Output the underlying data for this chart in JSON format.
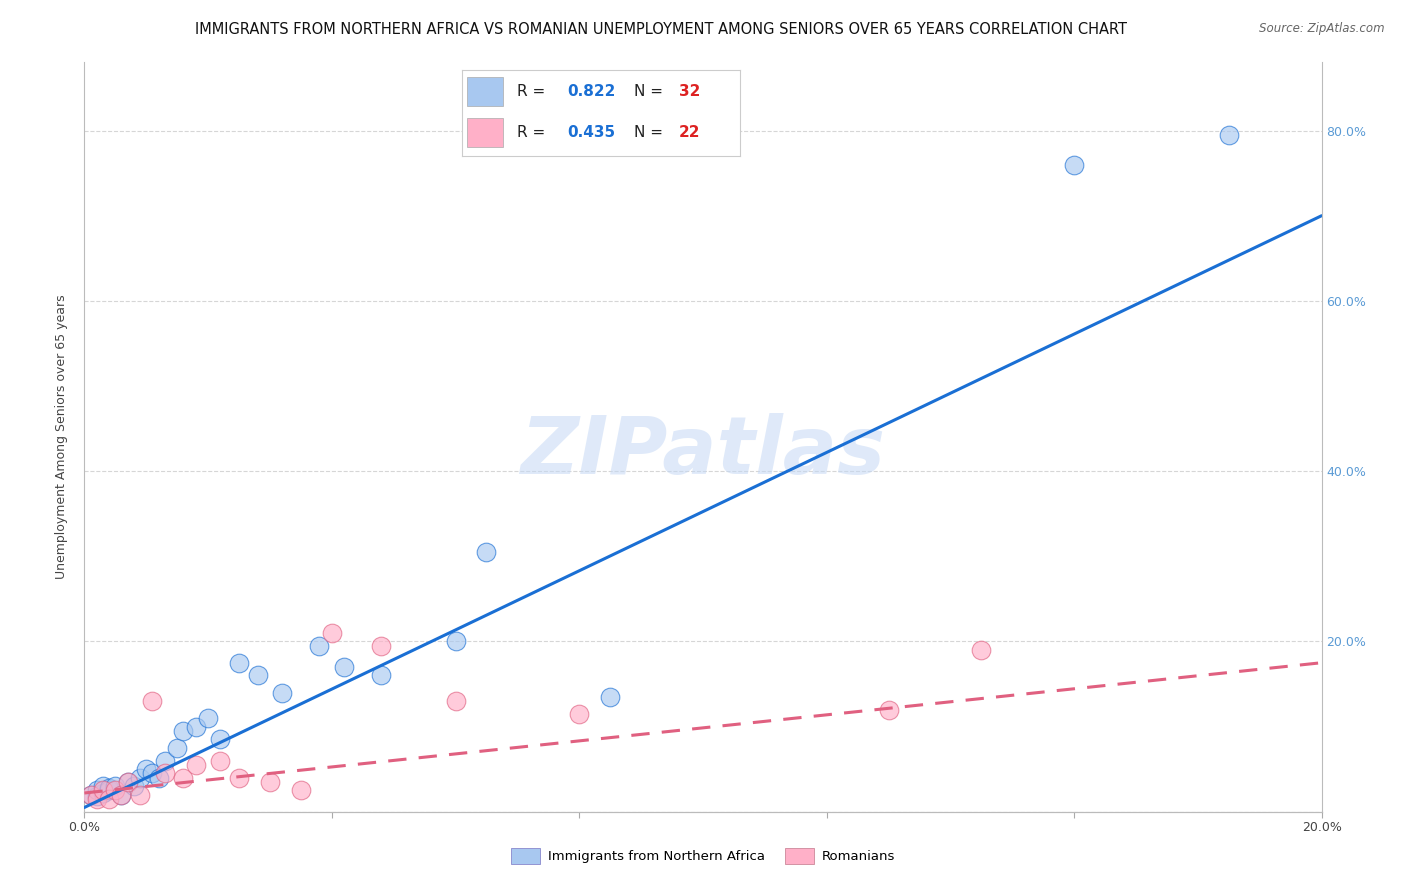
{
  "title": "IMMIGRANTS FROM NORTHERN AFRICA VS ROMANIAN UNEMPLOYMENT AMONG SENIORS OVER 65 YEARS CORRELATION CHART",
  "source": "Source: ZipAtlas.com",
  "ylabel": "Unemployment Among Seniors over 65 years",
  "watermark": "ZIPatlas",
  "xlim": [
    0.0,
    0.2
  ],
  "ylim": [
    0.0,
    0.88
  ],
  "blue_color": "#A8C8F0",
  "blue_line_color": "#1A6FD4",
  "pink_color": "#FFB0C8",
  "pink_line_color": "#E06080",
  "blue_label": "Immigrants from Northern Africa",
  "pink_label": "Romanians",
  "legend_R_blue": "R = 0.822",
  "legend_N_blue": "N = 32",
  "legend_R_pink": "R = 0.435",
  "legend_N_pink": "N = 22",
  "blue_scatter_x": [
    0.001,
    0.002,
    0.002,
    0.003,
    0.003,
    0.004,
    0.004,
    0.005,
    0.006,
    0.007,
    0.008,
    0.009,
    0.01,
    0.011,
    0.012,
    0.013,
    0.015,
    0.016,
    0.018,
    0.02,
    0.022,
    0.025,
    0.028,
    0.032,
    0.038,
    0.042,
    0.048,
    0.06,
    0.065,
    0.085,
    0.16,
    0.185
  ],
  "blue_scatter_y": [
    0.02,
    0.018,
    0.025,
    0.022,
    0.03,
    0.025,
    0.028,
    0.03,
    0.02,
    0.035,
    0.03,
    0.04,
    0.05,
    0.045,
    0.04,
    0.06,
    0.075,
    0.095,
    0.1,
    0.11,
    0.085,
    0.175,
    0.16,
    0.14,
    0.195,
    0.17,
    0.16,
    0.2,
    0.305,
    0.135,
    0.76,
    0.795
  ],
  "pink_scatter_x": [
    0.001,
    0.002,
    0.003,
    0.004,
    0.005,
    0.006,
    0.007,
    0.009,
    0.011,
    0.013,
    0.016,
    0.018,
    0.022,
    0.025,
    0.03,
    0.035,
    0.04,
    0.048,
    0.06,
    0.08,
    0.13,
    0.145
  ],
  "pink_scatter_y": [
    0.02,
    0.015,
    0.025,
    0.015,
    0.025,
    0.02,
    0.035,
    0.02,
    0.13,
    0.045,
    0.04,
    0.055,
    0.06,
    0.04,
    0.035,
    0.025,
    0.21,
    0.195,
    0.13,
    0.115,
    0.12,
    0.19
  ],
  "blue_line_x": [
    0.0,
    0.2
  ],
  "blue_line_y": [
    0.005,
    0.7
  ],
  "pink_line_x": [
    0.0,
    0.2
  ],
  "pink_line_y": [
    0.022,
    0.175
  ],
  "grid_color": "#CCCCCC",
  "right_tick_color": "#5B9BD5",
  "title_fontsize": 10.5,
  "axis_label_fontsize": 9,
  "tick_fontsize": 9,
  "source_fontsize": 8.5
}
